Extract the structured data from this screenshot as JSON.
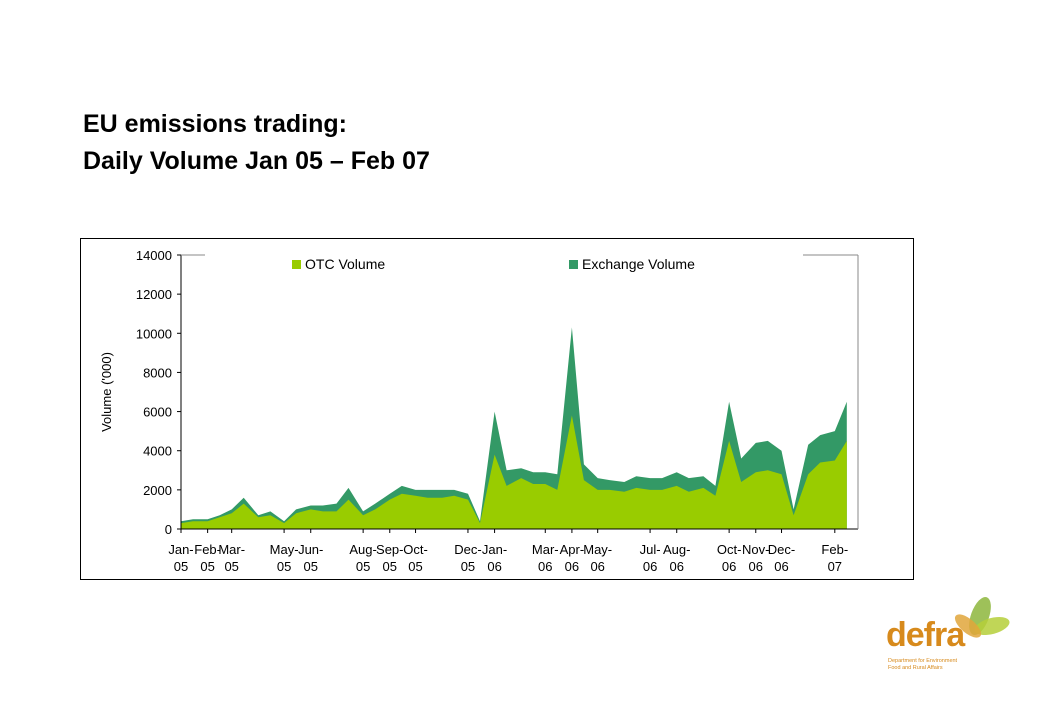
{
  "slide": {
    "title_line1": "EU emissions trading:",
    "title_line2": "Daily Volume Jan 05 – Feb 07"
  },
  "logo": {
    "word": "defra",
    "subtitle_line1": "Department for Environment",
    "subtitle_line2": "Food and Rural Affairs"
  },
  "colors": {
    "otc": "#99cc00",
    "exchange": "#339966",
    "axis": "#000000",
    "logo_orange": "#d78a1c",
    "logo_green": "#8db63c"
  },
  "chart_data": {
    "type": "area",
    "title": "",
    "xlabel": "",
    "ylabel": "Volume ('000)",
    "ylim": [
      0,
      14000
    ],
    "yticks": [
      0,
      2000,
      4000,
      6000,
      8000,
      10000,
      12000,
      14000
    ],
    "xlim": [
      "2005-01-01",
      "2007-02-28"
    ],
    "grid": false,
    "legend_position": "top",
    "stacked": true,
    "x_tick_labels": [
      {
        "date": "2005-01-01",
        "line1": "Jan-",
        "line2": "05"
      },
      {
        "date": "2005-02-01",
        "line1": "Feb-",
        "line2": "05"
      },
      {
        "date": "2005-03-01",
        "line1": "Mar-",
        "line2": "05"
      },
      {
        "date": "2005-05-01",
        "line1": "May-",
        "line2": "05"
      },
      {
        "date": "2005-06-01",
        "line1": "Jun-",
        "line2": "05"
      },
      {
        "date": "2005-08-01",
        "line1": "Aug-",
        "line2": "05"
      },
      {
        "date": "2005-09-01",
        "line1": "Sep-",
        "line2": "05"
      },
      {
        "date": "2005-10-01",
        "line1": "Oct-",
        "line2": "05"
      },
      {
        "date": "2005-12-01",
        "line1": "Dec-",
        "line2": "05"
      },
      {
        "date": "2006-01-01",
        "line1": "Jan-",
        "line2": "06"
      },
      {
        "date": "2006-03-01",
        "line1": "Mar-",
        "line2": "06"
      },
      {
        "date": "2006-04-01",
        "line1": "Apr-",
        "line2": "06"
      },
      {
        "date": "2006-05-01",
        "line1": "May-",
        "line2": "06"
      },
      {
        "date": "2006-07-01",
        "line1": "Jul-",
        "line2": "06"
      },
      {
        "date": "2006-08-01",
        "line1": "Aug-",
        "line2": "06"
      },
      {
        "date": "2006-10-01",
        "line1": "Oct-",
        "line2": "06"
      },
      {
        "date": "2006-11-01",
        "line1": "Nov-",
        "line2": "06"
      },
      {
        "date": "2006-12-01",
        "line1": "Dec-",
        "line2": "06"
      },
      {
        "date": "2007-02-01",
        "line1": "Feb-",
        "line2": "07"
      }
    ],
    "series": [
      {
        "name": "OTC Volume",
        "x": [
          "2005-01-01",
          "2005-01-15",
          "2005-02-01",
          "2005-02-15",
          "2005-03-01",
          "2005-03-15",
          "2005-04-01",
          "2005-04-15",
          "2005-05-01",
          "2005-05-15",
          "2005-06-01",
          "2005-06-15",
          "2005-07-01",
          "2005-07-15",
          "2005-08-01",
          "2005-08-15",
          "2005-09-01",
          "2005-09-15",
          "2005-10-01",
          "2005-10-15",
          "2005-11-01",
          "2005-11-15",
          "2005-12-01",
          "2005-12-15",
          "2006-01-01",
          "2006-01-15",
          "2006-02-01",
          "2006-02-15",
          "2006-03-01",
          "2006-03-15",
          "2006-04-01",
          "2006-04-15",
          "2006-05-01",
          "2006-05-15",
          "2006-06-01",
          "2006-06-15",
          "2006-07-01",
          "2006-07-15",
          "2006-08-01",
          "2006-08-15",
          "2006-09-01",
          "2006-09-15",
          "2006-10-01",
          "2006-10-15",
          "2006-11-01",
          "2006-11-15",
          "2006-12-01",
          "2006-12-15",
          "2007-01-01",
          "2007-01-15",
          "2007-02-01",
          "2007-02-15"
        ],
        "values": [
          300,
          400,
          400,
          600,
          800,
          1300,
          600,
          700,
          300,
          800,
          1000,
          900,
          900,
          1500,
          700,
          1000,
          1500,
          1800,
          1700,
          1600,
          1600,
          1700,
          1500,
          300,
          3800,
          2200,
          2600,
          2300,
          2300,
          2000,
          5800,
          2500,
          2000,
          2000,
          1900,
          2100,
          2000,
          2000,
          2200,
          1900,
          2100,
          1700,
          4500,
          2400,
          2900,
          3000,
          2800,
          700,
          2800,
          3400,
          3500,
          4500
        ]
      },
      {
        "name": "Exchange Volume",
        "x": [
          "2005-01-01",
          "2005-01-15",
          "2005-02-01",
          "2005-02-15",
          "2005-03-01",
          "2005-03-15",
          "2005-04-01",
          "2005-04-15",
          "2005-05-01",
          "2005-05-15",
          "2005-06-01",
          "2005-06-15",
          "2005-07-01",
          "2005-07-15",
          "2005-08-01",
          "2005-08-15",
          "2005-09-01",
          "2005-09-15",
          "2005-10-01",
          "2005-10-15",
          "2005-11-01",
          "2005-11-15",
          "2005-12-01",
          "2005-12-15",
          "2006-01-01",
          "2006-01-15",
          "2006-02-01",
          "2006-02-15",
          "2006-03-01",
          "2006-03-15",
          "2006-04-01",
          "2006-04-15",
          "2006-05-01",
          "2006-05-15",
          "2006-06-01",
          "2006-06-15",
          "2006-07-01",
          "2006-07-15",
          "2006-08-01",
          "2006-08-15",
          "2006-09-01",
          "2006-09-15",
          "2006-10-01",
          "2006-10-15",
          "2006-11-01",
          "2006-11-15",
          "2006-12-01",
          "2006-12-15",
          "2007-01-01",
          "2007-01-15",
          "2007-02-01",
          "2007-02-15"
        ],
        "values": [
          100,
          100,
          100,
          100,
          200,
          300,
          100,
          200,
          100,
          200,
          200,
          300,
          400,
          600,
          200,
          300,
          300,
          400,
          300,
          400,
          400,
          300,
          300,
          100,
          2200,
          800,
          500,
          600,
          600,
          800,
          4500,
          800,
          600,
          500,
          500,
          600,
          600,
          600,
          700,
          700,
          600,
          500,
          2000,
          1200,
          1500,
          1500,
          1200,
          300,
          1500,
          1400,
          1500,
          2000
        ]
      }
    ]
  }
}
